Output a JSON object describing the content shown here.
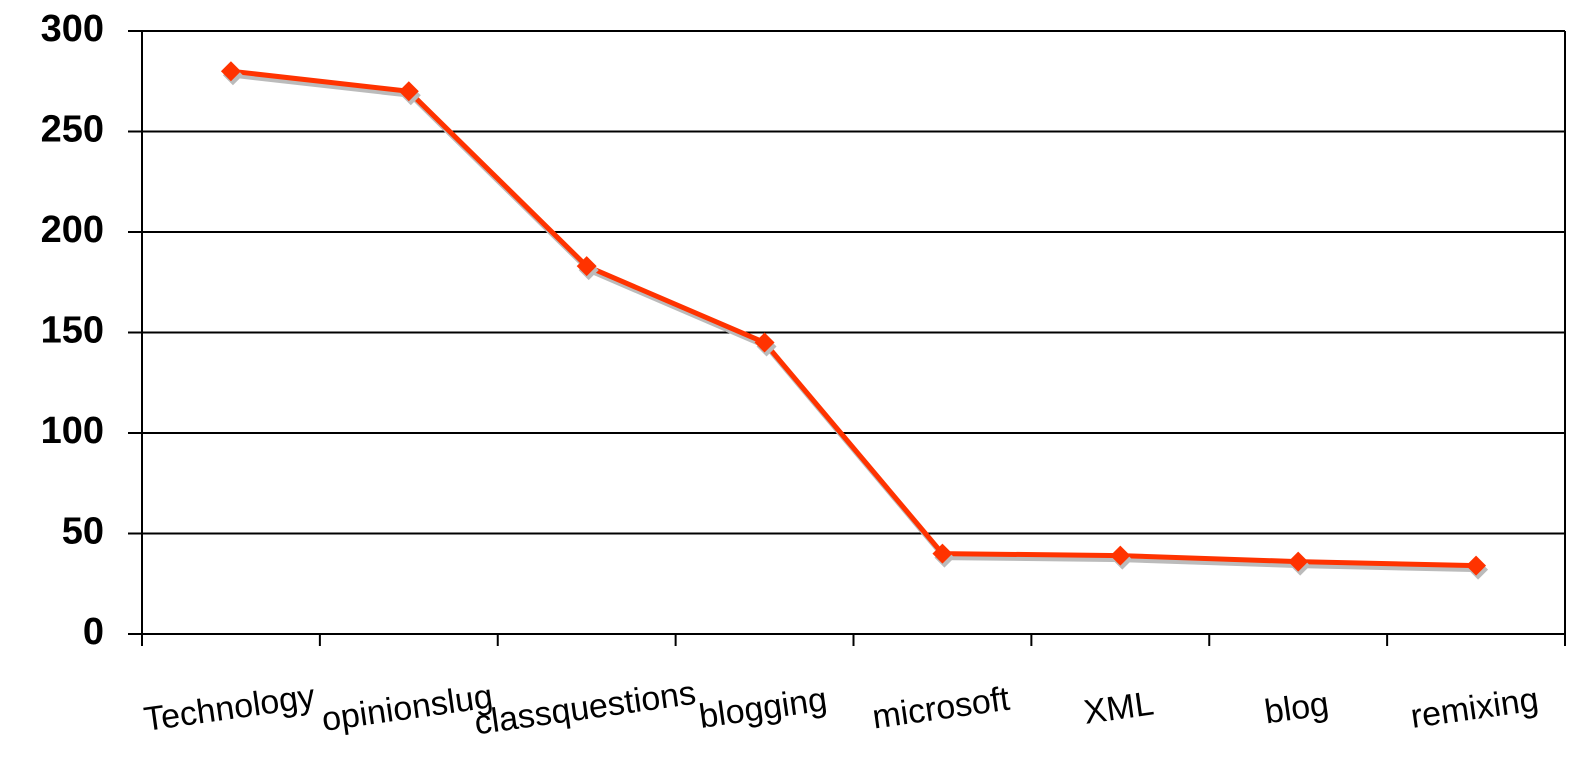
{
  "chart_data": {
    "type": "line",
    "categories": [
      "Technology",
      "opinionslug",
      "classquestions",
      "blogging",
      "microsoft",
      "XML",
      "blog",
      "remixing"
    ],
    "values": [
      280,
      270,
      183,
      145,
      40,
      39,
      36,
      34
    ],
    "color": "#ff3300",
    "ylim": [
      0,
      300
    ],
    "yticks": [
      0,
      50,
      100,
      150,
      200,
      250,
      300
    ],
    "grid": true
  }
}
